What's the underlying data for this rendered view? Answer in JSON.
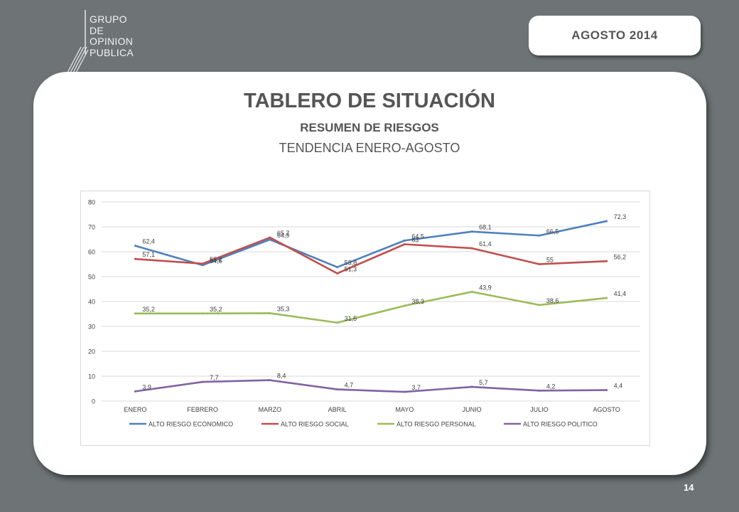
{
  "logo": {
    "lines": [
      "GRUPO",
      "DE",
      "OPINION",
      "PUBLICA"
    ]
  },
  "header": {
    "date": "AGOSTO 2014"
  },
  "page": {
    "title": "TABLERO DE SITUACIÓN",
    "subtitle": "RESUMEN DE RIESGOS",
    "subtitle2": "TENDENCIA ENERO-AGOSTO",
    "number": "14"
  },
  "chart_data": {
    "type": "line",
    "categories": [
      "ENERO",
      "FEBRERO",
      "MARZO",
      "ABRIL",
      "MAYO",
      "JUNIO",
      "JULIO",
      "AGOSTO"
    ],
    "ylim": [
      0,
      80
    ],
    "yticks": [
      "0",
      "10",
      "20",
      "30",
      "40",
      "50",
      "60",
      "70",
      "80"
    ],
    "grid": true,
    "legend": "bottom",
    "series": [
      {
        "name": "ALTO RIESGO ECONOMICO",
        "color": "#4f81bd",
        "values": [
          62.4,
          54.6,
          64.9,
          53.8,
          64.5,
          68.1,
          66.5,
          72.3
        ],
        "labels": [
          "62,4",
          "54,6",
          "64,9",
          "53,8",
          "64,5",
          "68,1",
          "66,5",
          "72,3"
        ]
      },
      {
        "name": "ALTO RIESGO SOCIAL",
        "color": "#c0504d",
        "values": [
          57.1,
          55.2,
          65.7,
          51.3,
          63,
          61.4,
          55,
          56.2
        ],
        "labels": [
          "57,1",
          "55,2",
          "65,7",
          "51,3",
          "63",
          "61,4",
          "55",
          "56,2"
        ]
      },
      {
        "name": "ALTO RIESGO PERSONAL",
        "color": "#9bbb59",
        "values": [
          35.2,
          35.2,
          35.3,
          31.5,
          38.3,
          43.9,
          38.6,
          41.4
        ],
        "labels": [
          "35,2",
          "35,2",
          "35,3",
          "31,5",
          "38,3",
          "43,9",
          "38,6",
          "41,4"
        ]
      },
      {
        "name": "ALTO RIESGO POLITICO",
        "color": "#8064a2",
        "values": [
          3.9,
          7.7,
          8.4,
          4.7,
          3.7,
          5.7,
          4.2,
          4.4
        ],
        "labels": [
          "3,9",
          "7,7",
          "8,4",
          "4,7",
          "3,7",
          "5,7",
          "4,2",
          "4,4"
        ]
      }
    ]
  }
}
